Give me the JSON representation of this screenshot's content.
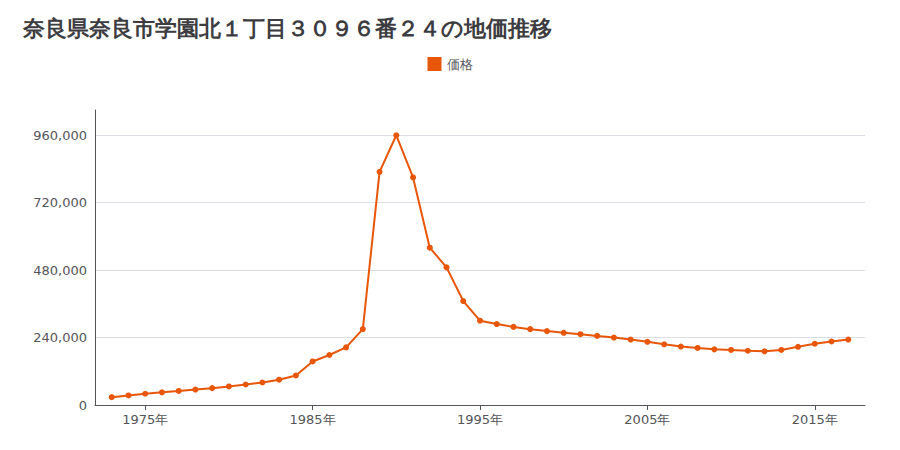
{
  "chart_data": {
    "type": "line",
    "title": "奈良県奈良市学園北１丁目３０９６番２４の地価推移",
    "x": [
      1973,
      1974,
      1975,
      1976,
      1977,
      1978,
      1979,
      1980,
      1981,
      1982,
      1983,
      1984,
      1985,
      1986,
      1987,
      1988,
      1989,
      1990,
      1991,
      1992,
      1993,
      1994,
      1995,
      1996,
      1997,
      1998,
      1999,
      2000,
      2001,
      2002,
      2003,
      2004,
      2005,
      2006,
      2007,
      2008,
      2009,
      2010,
      2011,
      2012,
      2013,
      2014,
      2015,
      2016,
      2017
    ],
    "series": [
      {
        "name": "価格",
        "color": "#e8560a",
        "marker": "circle",
        "values": [
          28000,
          34000,
          40000,
          45000,
          50000,
          55000,
          60000,
          66000,
          73000,
          80000,
          90000,
          105000,
          155000,
          178000,
          205000,
          270000,
          830000,
          960000,
          810000,
          560000,
          490000,
          370000,
          300000,
          288000,
          278000,
          270000,
          263000,
          257000,
          252000,
          246000,
          240000,
          233000,
          225000,
          216000,
          208000,
          203000,
          198000,
          196000,
          193000,
          191000,
          196000,
          207000,
          218000,
          226000,
          233000
        ]
      }
    ],
    "xlim": [
      1972,
      2018
    ],
    "xticks": [
      {
        "value": 1975,
        "label": "1975年"
      },
      {
        "value": 1985,
        "label": "1985年"
      },
      {
        "value": 1995,
        "label": "1995年"
      },
      {
        "value": 2005,
        "label": "2005年"
      },
      {
        "value": 2015,
        "label": "2015年"
      }
    ],
    "ylim": [
      0,
      1050000
    ],
    "yticks": [
      0,
      {
        "value": 240000,
        "label": "240,000"
      },
      {
        "value": 480000,
        "label": "480,000"
      },
      {
        "value": 720000,
        "label": "720,000"
      },
      {
        "value": 960000,
        "label": "960,000"
      }
    ],
    "grid": "y",
    "legend": "top"
  }
}
